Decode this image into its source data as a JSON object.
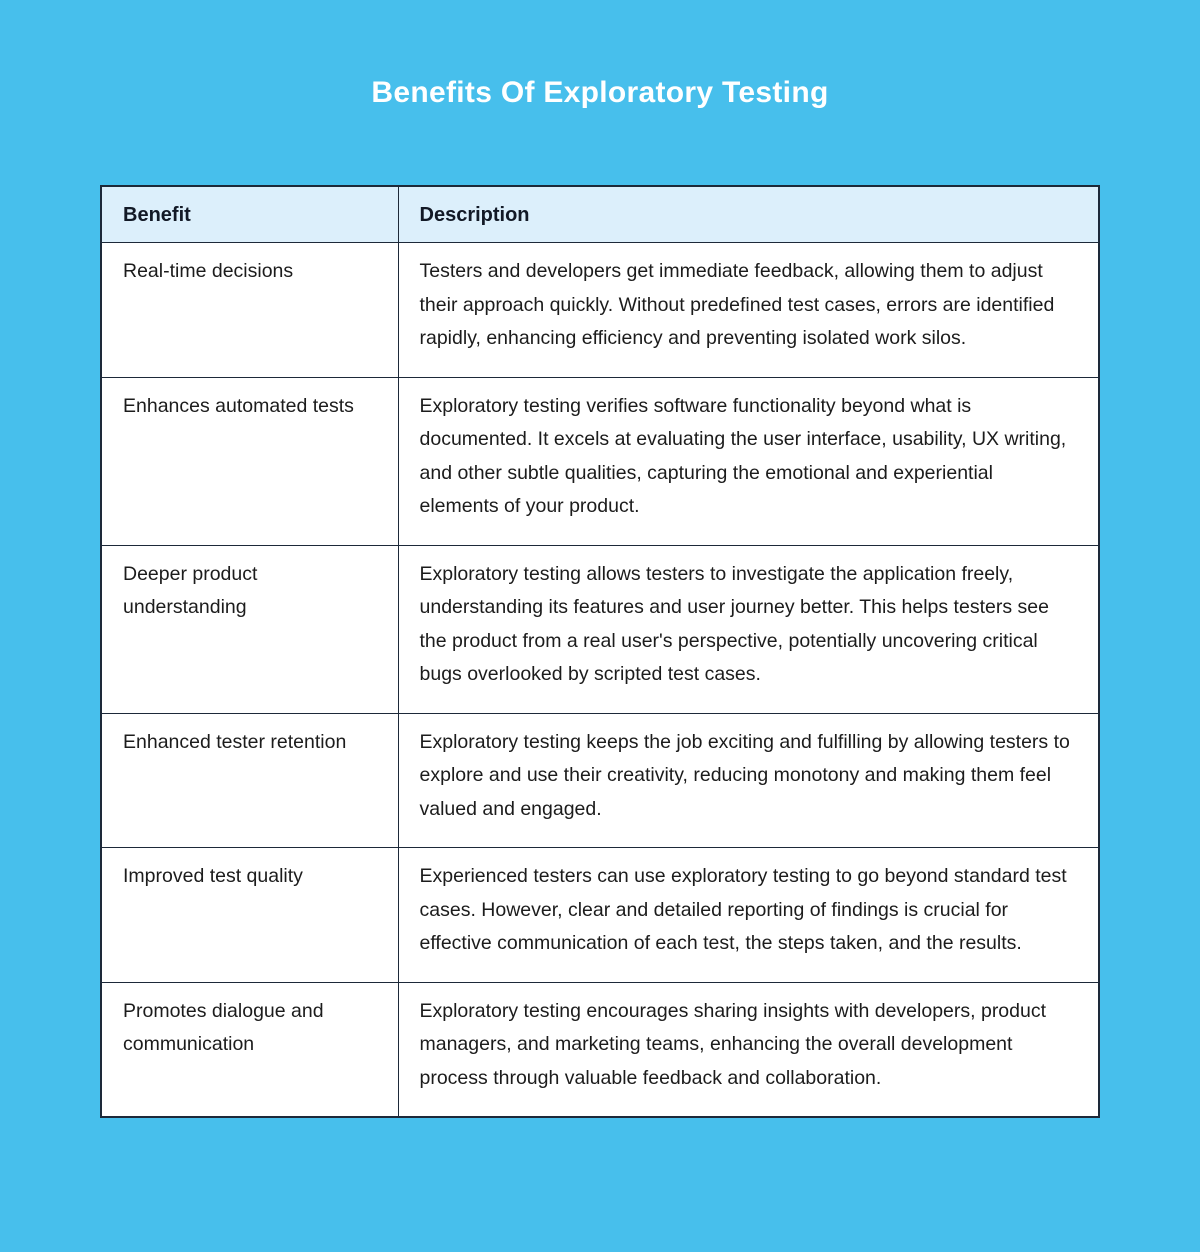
{
  "page": {
    "title": "Benefits Of Exploratory Testing",
    "background_color": "#47BFEC",
    "title_color": "#FFFFFF"
  },
  "table": {
    "header_bg_color": "#DCEFFB",
    "row_bg_color": "#FFFFFF",
    "border_color": "#1D2939",
    "columns": [
      "Benefit",
      "Description"
    ],
    "rows": [
      {
        "benefit": "Real-time decisions",
        "description": "Testers and developers get immediate feedback, allowing them to adjust their approach quickly. Without predefined test cases, errors are identified rapidly, enhancing efficiency and preventing isolated work silos."
      },
      {
        "benefit": "Enhances automated tests",
        "description": "Exploratory testing verifies software functionality beyond what is documented. It excels at evaluating the user interface, usability, UX writing, and other subtle qualities, capturing the emotional and experiential elements of your product."
      },
      {
        "benefit": "Deeper product understanding",
        "description": "Exploratory testing allows testers to investigate the application freely, understanding its features and user journey better. This helps testers see the product from a real user's perspective, potentially uncovering critical bugs overlooked by scripted test cases."
      },
      {
        "benefit": "Enhanced tester retention",
        "description": "Exploratory testing keeps the job exciting and fulfilling by allowing testers to explore and use their creativity, reducing monotony and making them feel valued and engaged."
      },
      {
        "benefit": "Improved test quality",
        "description": "Experienced testers can use exploratory testing to go beyond standard test cases. However, clear and detailed reporting of findings is crucial for effective communication of each test, the steps taken, and the results."
      },
      {
        "benefit": "Promotes dialogue and communication",
        "description": "Exploratory testing encourages sharing insights with developers, product managers, and marketing teams, enhancing the overall development process through valuable feedback and collaboration."
      }
    ]
  }
}
